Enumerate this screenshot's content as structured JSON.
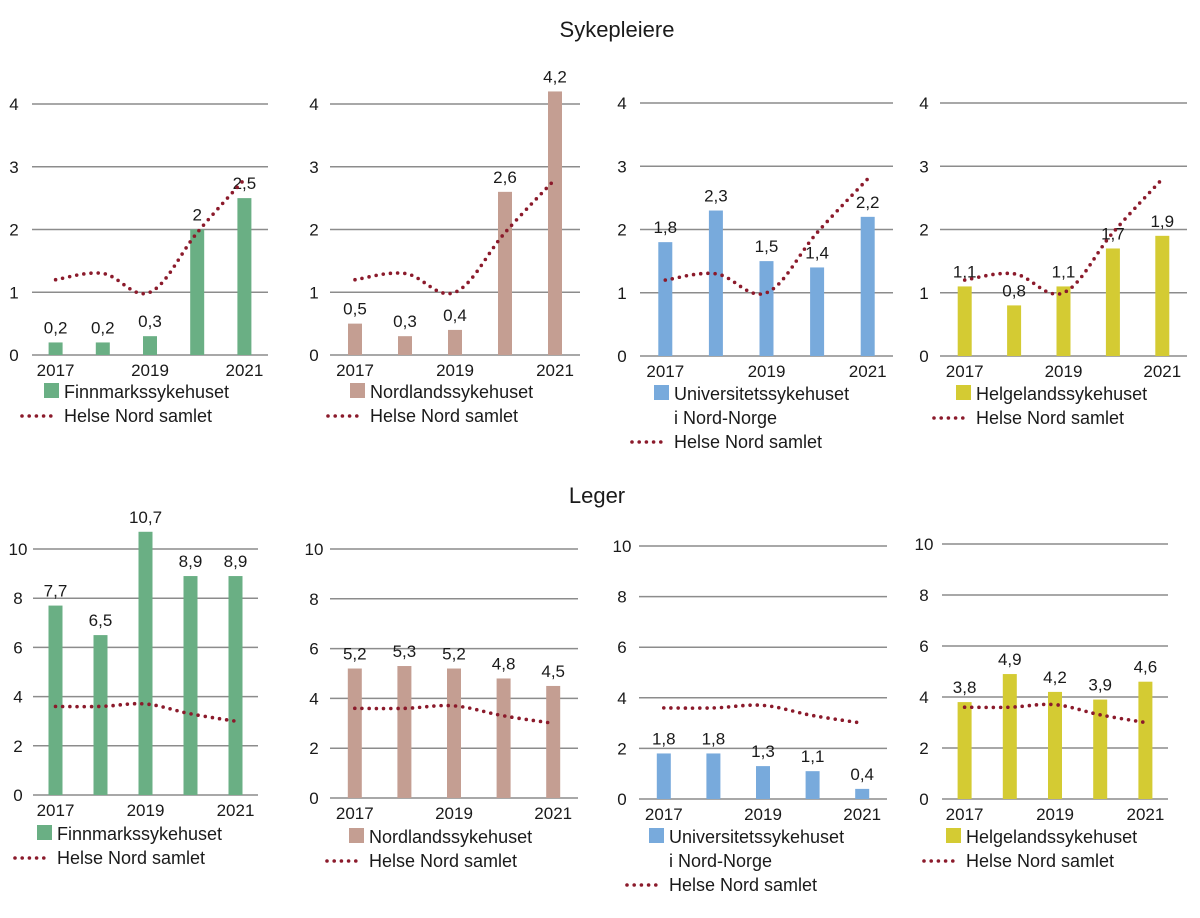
{
  "chart_data": [
    {
      "type": "bar",
      "section": "Sykepleiere",
      "hospital": "Finnmarkssykehuset",
      "categories": [
        "2017",
        "2018",
        "2019",
        "2020",
        "2021"
      ],
      "x_tick_labels": [
        "2017",
        "",
        "2019",
        "",
        "2021"
      ],
      "series": [
        {
          "name": "Finnmarkssykehuset",
          "kind": "bar",
          "color": "#6aaf84",
          "values": [
            0.2,
            0.2,
            0.3,
            2.0,
            2.5
          ],
          "labels": [
            "0,2",
            "0,2",
            "0,3",
            "2",
            "2,5"
          ]
        },
        {
          "name": "Helse Nord samlet",
          "kind": "dotted-line",
          "color": "#8b1a2b",
          "values": [
            1.2,
            1.3,
            1.0,
            1.95,
            2.8
          ]
        }
      ],
      "ylim": [
        0,
        4
      ],
      "yticks": [
        0,
        1,
        2,
        3,
        4
      ],
      "legend": [
        "Finnmarkssykehuset",
        "Helse Nord samlet"
      ],
      "legend_position": "bottom"
    },
    {
      "type": "bar",
      "section": "Sykepleiere",
      "hospital": "Nordlandssykehuset",
      "categories": [
        "2017",
        "2018",
        "2019",
        "2020",
        "2021"
      ],
      "x_tick_labels": [
        "2017",
        "",
        "2019",
        "",
        "2021"
      ],
      "series": [
        {
          "name": "Nordlandssykehuset",
          "kind": "bar",
          "color": "#c49e92",
          "values": [
            0.5,
            0.3,
            0.4,
            2.6,
            4.2
          ],
          "labels": [
            "0,5",
            "0,3",
            "0,4",
            "2,6",
            "4,2"
          ]
        },
        {
          "name": "Helse Nord samlet",
          "kind": "dotted-line",
          "color": "#8b1a2b",
          "values": [
            1.2,
            1.3,
            1.0,
            1.95,
            2.8
          ]
        }
      ],
      "ylim": [
        0,
        4
      ],
      "yticks": [
        0,
        1,
        2,
        3,
        4
      ],
      "legend": [
        "Nordlandssykehuset",
        "Helse Nord samlet"
      ],
      "legend_position": "bottom"
    },
    {
      "type": "bar",
      "section": "Sykepleiere",
      "hospital": "Universitetssykehuset i Nord-Norge",
      "categories": [
        "2017",
        "2018",
        "2019",
        "2020",
        "2021"
      ],
      "x_tick_labels": [
        "2017",
        "",
        "2019",
        "",
        "2021"
      ],
      "series": [
        {
          "name": "Universitetssykehuset i Nord-Norge",
          "kind": "bar",
          "color": "#78aadc",
          "values": [
            1.8,
            2.3,
            1.5,
            1.4,
            2.2
          ],
          "labels": [
            "1,8",
            "2,3",
            "1,5",
            "1,4",
            "2,2"
          ]
        },
        {
          "name": "Helse Nord samlet",
          "kind": "dotted-line",
          "color": "#8b1a2b",
          "values": [
            1.2,
            1.3,
            1.0,
            1.95,
            2.8
          ]
        }
      ],
      "ylim": [
        0,
        4
      ],
      "yticks": [
        0,
        1,
        2,
        3,
        4
      ],
      "legend": [
        "Universitetssykehuset",
        "i Nord-Norge",
        "Helse Nord samlet"
      ],
      "legend_position": "bottom"
    },
    {
      "type": "bar",
      "section": "Sykepleiere",
      "hospital": "Helgelandssykehuset",
      "categories": [
        "2017",
        "2018",
        "2019",
        "2020",
        "2021"
      ],
      "x_tick_labels": [
        "2017",
        "",
        "2019",
        "",
        "2021"
      ],
      "series": [
        {
          "name": "Helgelandssykehuset",
          "kind": "bar",
          "color": "#d4cb33",
          "values": [
            1.1,
            0.8,
            1.1,
            1.7,
            1.9
          ],
          "labels": [
            "1,1",
            "0,8",
            "1,1",
            "1,7",
            "1,9"
          ]
        },
        {
          "name": "Helse Nord samlet",
          "kind": "dotted-line",
          "color": "#8b1a2b",
          "values": [
            1.2,
            1.3,
            1.0,
            1.95,
            2.8
          ]
        }
      ],
      "ylim": [
        0,
        4
      ],
      "yticks": [
        0,
        1,
        2,
        3,
        4
      ],
      "legend": [
        "Helgelandssykehuset",
        "Helse Nord samlet"
      ],
      "legend_position": "bottom"
    },
    {
      "type": "bar",
      "section": "Leger",
      "hospital": "Finnmarkssykehuset",
      "categories": [
        "2017",
        "2018",
        "2019",
        "2020",
        "2021"
      ],
      "x_tick_labels": [
        "2017",
        "",
        "2019",
        "",
        "2021"
      ],
      "series": [
        {
          "name": "Finnmarkssykehuset",
          "kind": "bar",
          "color": "#6aaf84",
          "values": [
            7.7,
            6.5,
            10.7,
            8.9,
            8.9
          ],
          "labels": [
            "7,7",
            "6,5",
            "10,7",
            "8,9",
            "8,9"
          ]
        },
        {
          "name": "Helse Nord samlet",
          "kind": "dotted-line",
          "color": "#8b1a2b",
          "values": [
            3.6,
            3.6,
            3.7,
            3.3,
            3.0
          ]
        }
      ],
      "ylim": [
        0,
        10
      ],
      "yticks": [
        0,
        2,
        4,
        6,
        8,
        10
      ],
      "legend": [
        "Finnmarkssykehuset",
        "Helse Nord samlet"
      ],
      "legend_position": "bottom"
    },
    {
      "type": "bar",
      "section": "Leger",
      "hospital": "Nordlandssykehuset",
      "categories": [
        "2017",
        "2018",
        "2019",
        "2020",
        "2021"
      ],
      "x_tick_labels": [
        "2017",
        "",
        "2019",
        "",
        "2021"
      ],
      "series": [
        {
          "name": "Nordlandssykehuset",
          "kind": "bar",
          "color": "#c49e92",
          "values": [
            5.2,
            5.3,
            5.2,
            4.8,
            4.5
          ],
          "labels": [
            "5,2",
            "5,3",
            "5,2",
            "4,8",
            "4,5"
          ]
        },
        {
          "name": "Helse Nord samlet",
          "kind": "dotted-line",
          "color": "#8b1a2b",
          "values": [
            3.6,
            3.6,
            3.7,
            3.3,
            3.0
          ]
        }
      ],
      "ylim": [
        0,
        10
      ],
      "yticks": [
        0,
        2,
        4,
        6,
        8,
        10
      ],
      "legend": [
        "Nordlandssykehuset",
        "Helse Nord samlet"
      ],
      "legend_position": "bottom"
    },
    {
      "type": "bar",
      "section": "Leger",
      "hospital": "Universitetssykehuset i Nord-Norge",
      "categories": [
        "2017",
        "2018",
        "2019",
        "2020",
        "2021"
      ],
      "x_tick_labels": [
        "2017",
        "",
        "2019",
        "",
        "2021"
      ],
      "series": [
        {
          "name": "Universitetssykehuset i Nord-Norge",
          "kind": "bar",
          "color": "#78aadc",
          "values": [
            1.8,
            1.8,
            1.3,
            1.1,
            0.4
          ],
          "labels": [
            "1,8",
            "1,8",
            "1,3",
            "1,1",
            "0,4"
          ]
        },
        {
          "name": "Helse Nord samlet",
          "kind": "dotted-line",
          "color": "#8b1a2b",
          "values": [
            3.6,
            3.6,
            3.7,
            3.3,
            3.0
          ]
        }
      ],
      "ylim": [
        0,
        10
      ],
      "yticks": [
        0,
        2,
        4,
        6,
        8,
        10
      ],
      "legend": [
        "Universitetssykehuset",
        "i Nord-Norge",
        "Helse Nord samlet"
      ],
      "legend_position": "bottom"
    },
    {
      "type": "bar",
      "section": "Leger",
      "hospital": "Helgelandssykehuset",
      "categories": [
        "2017",
        "2018",
        "2019",
        "2020",
        "2021"
      ],
      "x_tick_labels": [
        "2017",
        "",
        "2019",
        "",
        "2021"
      ],
      "series": [
        {
          "name": "Helgelandssykehuset",
          "kind": "bar",
          "color": "#d4cb33",
          "values": [
            3.8,
            4.9,
            4.2,
            3.9,
            4.6
          ],
          "labels": [
            "3,8",
            "4,9",
            "4,2",
            "3,9",
            "4,6"
          ]
        },
        {
          "name": "Helse Nord samlet",
          "kind": "dotted-line",
          "color": "#8b1a2b",
          "values": [
            3.6,
            3.6,
            3.7,
            3.3,
            3.0
          ]
        }
      ],
      "ylim": [
        0,
        10
      ],
      "yticks": [
        0,
        2,
        4,
        6,
        8,
        10
      ],
      "legend": [
        "Helgelandssykehuset",
        "Helse Nord samlet"
      ],
      "legend_position": "bottom"
    }
  ],
  "sections": {
    "top": {
      "title": "Sykepleiere"
    },
    "bottom": {
      "title": "Leger"
    }
  }
}
